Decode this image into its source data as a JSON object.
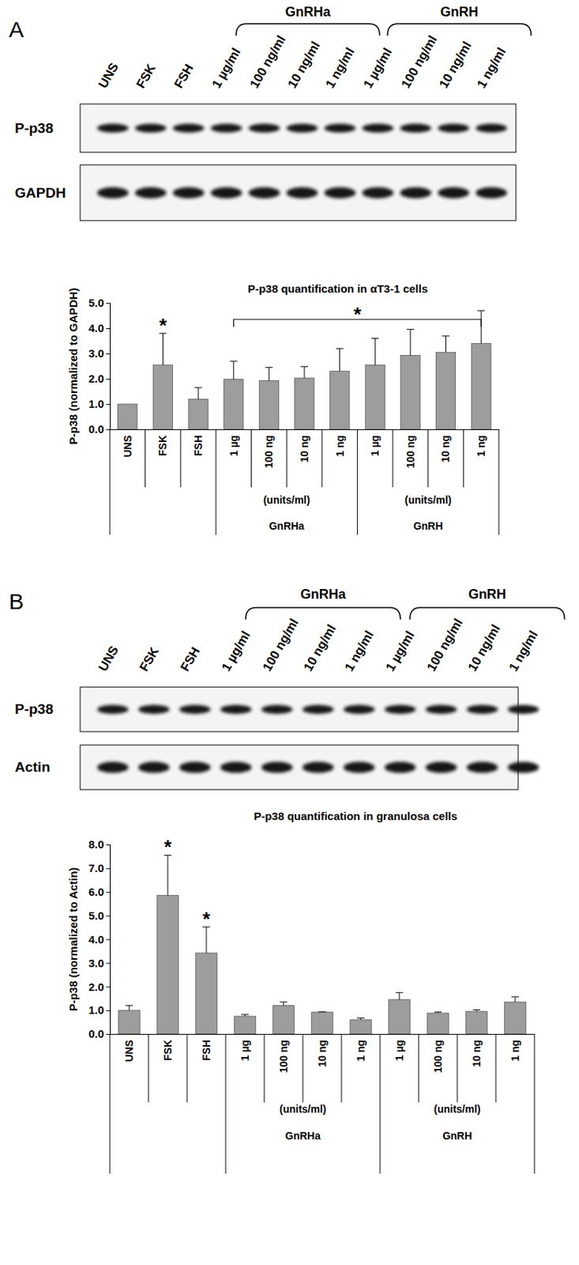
{
  "chart_data": [
    {
      "type": "bar",
      "title": "P-p38 quantification in αT3-1 cells",
      "y_label": "P-p38 (normalized to GAPDH)",
      "categories": [
        "UNS",
        "FSK",
        "FSH",
        "1 µg",
        "100 ng",
        "10 ng",
        "1 ng",
        "1 µg",
        "100 ng",
        "10 ng",
        "1 ng"
      ],
      "values": [
        1.0,
        2.55,
        1.2,
        1.98,
        1.93,
        2.03,
        2.3,
        2.55,
        2.93,
        3.05,
        3.4
      ],
      "errors": [
        null,
        1.25,
        0.45,
        0.72,
        0.52,
        0.45,
        0.9,
        1.05,
        1.03,
        0.65,
        1.3
      ],
      "groups": [
        {
          "name": "GnRHa",
          "unit": "(units/ml)",
          "first": 3,
          "last": 6
        },
        {
          "name": "GnRH",
          "unit": "(units/ml)",
          "first": 7,
          "last": 10
        }
      ],
      "annotations": [
        {
          "text": "*",
          "category": 1
        },
        {
          "text": "*",
          "from": 3,
          "to": 10
        }
      ],
      "color": "#9d9d9d",
      "ylim": [
        0,
        5
      ],
      "yticks": [
        {
          "value": 0,
          "label": "0.0"
        },
        {
          "value": 1,
          "label": "1.0"
        },
        {
          "value": 2,
          "label": "2.0"
        },
        {
          "value": 3,
          "label": "3.0"
        },
        {
          "value": 4,
          "label": "4.0"
        },
        {
          "value": 5,
          "label": "5.0"
        }
      ],
      "grid": false
    },
    {
      "type": "bar",
      "title": "P-p38 quantification in granulosa cells",
      "y_label": "P-p38 (normalized to Actin)",
      "categories": [
        "UNS",
        "FSK",
        "FSH",
        "1 µg",
        "100 ng",
        "10 ng",
        "1 ng",
        "1 µg",
        "100 ng",
        "10 ng",
        "1 ng"
      ],
      "values": [
        1.0,
        5.85,
        3.42,
        0.75,
        1.2,
        0.92,
        0.6,
        1.45,
        0.88,
        0.95,
        1.35
      ],
      "errors": [
        0.2,
        1.7,
        1.1,
        0.07,
        0.15,
        0.02,
        0.07,
        0.3,
        0.05,
        0.07,
        0.22
      ],
      "groups": [
        {
          "name": "GnRHa",
          "unit": "(units/ml)",
          "first": 3,
          "last": 6
        },
        {
          "name": "GnRH",
          "unit": "(units/ml)",
          "first": 7,
          "last": 10
        }
      ],
      "annotations": [
        {
          "text": "*",
          "category": 1
        },
        {
          "text": "*",
          "category": 2
        }
      ],
      "color": "#9d9d9d",
      "ylim": [
        0,
        8
      ],
      "yticks": [
        {
          "value": 0,
          "label": "0.0"
        },
        {
          "value": 1,
          "label": "1.0"
        },
        {
          "value": 2,
          "label": "2.0"
        },
        {
          "value": 3,
          "label": "3.0"
        },
        {
          "value": 4,
          "label": "4.0"
        },
        {
          "value": 5,
          "label": "5.0"
        },
        {
          "value": 6,
          "label": "6.0"
        },
        {
          "value": 7,
          "label": "7.0"
        },
        {
          "value": 8,
          "label": "8.0"
        }
      ],
      "grid": false
    }
  ],
  "blots": [
    {
      "panel": "A",
      "lanes": [
        "UNS",
        "FSK",
        "FSH",
        "1 µg/ml",
        "100 ng/ml",
        "10 ng/ml",
        "1 ng/ml",
        "1 µg/ml",
        "100 ng/ml",
        "10 ng/ml",
        "1 ng/ml"
      ],
      "groups": [
        {
          "name": "GnRHa",
          "first": 3,
          "last": 6
        },
        {
          "name": "GnRH",
          "first": 7,
          "last": 10
        }
      ],
      "rows": [
        "P-p38",
        "GAPDH"
      ]
    },
    {
      "panel": "B",
      "lanes": [
        "UNS",
        "FSK",
        "FSH",
        "1 µg/ml",
        "100 ng/ml",
        "10 ng/ml",
        "1 ng/ml",
        "1 µg/ml",
        "100 ng/ml",
        "10 ng/ml",
        "1 ng/ml"
      ],
      "groups": [
        {
          "name": "GnRHa",
          "first": 3,
          "last": 6
        },
        {
          "name": "GnRH",
          "first": 7,
          "last": 10
        }
      ],
      "rows": [
        "P-p38",
        "Actin"
      ]
    }
  ]
}
